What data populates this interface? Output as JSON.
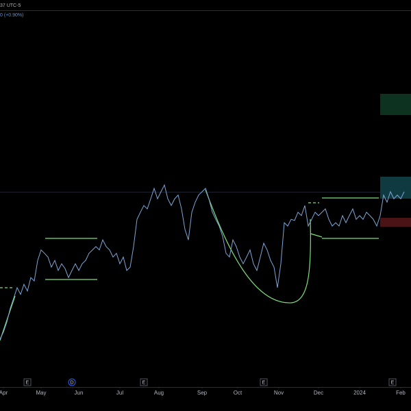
{
  "chart_data": {
    "type": "line",
    "header": [
      "37 UTC-5",
      "0 (+0.90%)"
    ],
    "series": [
      {
        "color": "#7ea6d8",
        "values": [
          11.9,
          13.8,
          16.5,
          20.2,
          22.9,
          25.7,
          23.9,
          26.6,
          24.8,
          28.4,
          27.5,
          33.0,
          35.8,
          34.9,
          33.9,
          31.2,
          33.0,
          30.3,
          32.1,
          30.8,
          28.4,
          30.3,
          32.1,
          30.3,
          32.1,
          33.0,
          34.9,
          35.8,
          36.7,
          35.8,
          38.5,
          36.7,
          35.8,
          33.9,
          34.9,
          32.1,
          33.9,
          30.3,
          31.2,
          36.7,
          44.0,
          45.9,
          47.7,
          46.8,
          49.5,
          52.3,
          49.5,
          51.4,
          53.2,
          49.5,
          47.7,
          49.5,
          50.5,
          46.8,
          41.3,
          38.5,
          45.9,
          48.6,
          50.5,
          51.4,
          52.3,
          49.5,
          45.9,
          44.0,
          42.2,
          39.4,
          34.9,
          33.9,
          38.5,
          36.7,
          33.9,
          32.1,
          33.9,
          35.8,
          32.1,
          30.3,
          33.9,
          37.6,
          35.8,
          33.0,
          31.2,
          25.7,
          32.1,
          43.1,
          42.2,
          44.0,
          43.7,
          45.9,
          45.0,
          47.7,
          42.2,
          44.0,
          45.9,
          45.0,
          45.9,
          46.8,
          44.0,
          42.2,
          43.1,
          42.2,
          45.0,
          43.1,
          45.0,
          46.8,
          44.0,
          45.0,
          44.0,
          45.9,
          45.0,
          44.0,
          42.2,
          45.0,
          50.5,
          48.6,
          51.4,
          49.5,
          50.5,
          49.5,
          51.4
        ]
      }
    ],
    "xlim": [
      0,
      120
    ],
    "ylim": [
      0,
      100
    ],
    "xticks": [
      {
        "value": 1,
        "label": "Apr"
      },
      {
        "value": 12,
        "label": "May"
      },
      {
        "value": 23,
        "label": "Jun"
      },
      {
        "value": 35,
        "label": "Jul"
      },
      {
        "value": 46.4,
        "label": "Aug"
      },
      {
        "value": 59,
        "label": "Sep"
      },
      {
        "value": 69.4,
        "label": "Oct"
      },
      {
        "value": 81.4,
        "label": "Nov"
      },
      {
        "value": 93,
        "label": "Dec"
      },
      {
        "value": 105,
        "label": "2024"
      },
      {
        "value": 117,
        "label": "Feb"
      }
    ],
    "events": [
      {
        "x": 8,
        "label": "E"
      },
      {
        "x": 21,
        "label": "D"
      },
      {
        "x": 42,
        "label": "E"
      },
      {
        "x": 77,
        "label": "E"
      },
      {
        "x": 114.6,
        "label": "E"
      }
    ]
  }
}
